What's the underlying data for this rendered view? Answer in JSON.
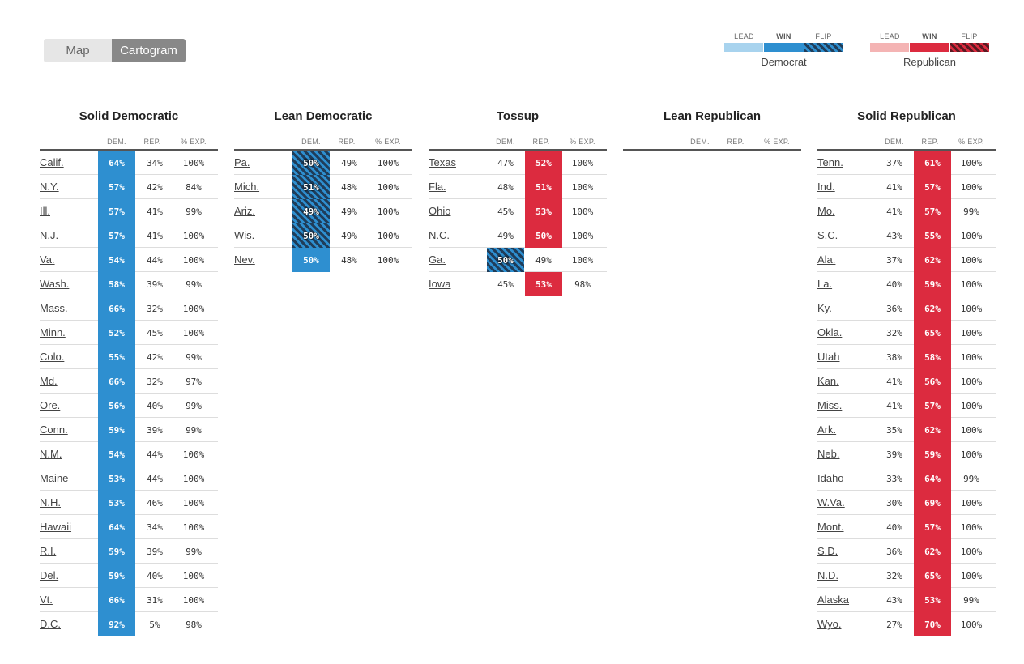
{
  "toggle": {
    "map_label": "Map",
    "cartogram_label": "Cartogram",
    "active": "cartogram"
  },
  "legend": {
    "dem": {
      "name": "Democrat",
      "labels": [
        "LEAD",
        "WIN",
        "FLIP"
      ],
      "colors": [
        "#a8d3ee",
        "#2e8fd0",
        "#1f3d5a"
      ]
    },
    "rep": {
      "name": "Republican",
      "labels": [
        "LEAD",
        "WIN",
        "FLIP"
      ],
      "colors": [
        "#f4b4b4",
        "#dc2b3f",
        "#5a1a22"
      ]
    }
  },
  "headers": {
    "dem": "DEM.",
    "rep": "REP.",
    "exp": "% EXP."
  },
  "columns": [
    {
      "title": "Solid Democratic",
      "rows": [
        {
          "state": "Calif.",
          "dem": "64%",
          "rep": "34%",
          "exp": "100%",
          "win": "dem"
        },
        {
          "state": "N.Y.",
          "dem": "57%",
          "rep": "42%",
          "exp": "84%",
          "win": "dem"
        },
        {
          "state": "Ill.",
          "dem": "57%",
          "rep": "41%",
          "exp": "99%",
          "win": "dem"
        },
        {
          "state": "N.J.",
          "dem": "57%",
          "rep": "41%",
          "exp": "100%",
          "win": "dem"
        },
        {
          "state": "Va.",
          "dem": "54%",
          "rep": "44%",
          "exp": "100%",
          "win": "dem"
        },
        {
          "state": "Wash.",
          "dem": "58%",
          "rep": "39%",
          "exp": "99%",
          "win": "dem"
        },
        {
          "state": "Mass.",
          "dem": "66%",
          "rep": "32%",
          "exp": "100%",
          "win": "dem"
        },
        {
          "state": "Minn.",
          "dem": "52%",
          "rep": "45%",
          "exp": "100%",
          "win": "dem"
        },
        {
          "state": "Colo.",
          "dem": "55%",
          "rep": "42%",
          "exp": "99%",
          "win": "dem"
        },
        {
          "state": "Md.",
          "dem": "66%",
          "rep": "32%",
          "exp": "97%",
          "win": "dem"
        },
        {
          "state": "Ore.",
          "dem": "56%",
          "rep": "40%",
          "exp": "99%",
          "win": "dem"
        },
        {
          "state": "Conn.",
          "dem": "59%",
          "rep": "39%",
          "exp": "99%",
          "win": "dem"
        },
        {
          "state": "N.M.",
          "dem": "54%",
          "rep": "44%",
          "exp": "100%",
          "win": "dem"
        },
        {
          "state": "Maine",
          "dem": "53%",
          "rep": "44%",
          "exp": "100%",
          "win": "dem"
        },
        {
          "state": "N.H.",
          "dem": "53%",
          "rep": "46%",
          "exp": "100%",
          "win": "dem"
        },
        {
          "state": "Hawaii",
          "dem": "64%",
          "rep": "34%",
          "exp": "100%",
          "win": "dem"
        },
        {
          "state": "R.I.",
          "dem": "59%",
          "rep": "39%",
          "exp": "99%",
          "win": "dem"
        },
        {
          "state": "Del.",
          "dem": "59%",
          "rep": "40%",
          "exp": "100%",
          "win": "dem"
        },
        {
          "state": "Vt.",
          "dem": "66%",
          "rep": "31%",
          "exp": "100%",
          "win": "dem"
        },
        {
          "state": "D.C.",
          "dem": "92%",
          "rep": "5%",
          "exp": "98%",
          "win": "dem"
        }
      ]
    },
    {
      "title": "Lean Democratic",
      "rows": [
        {
          "state": "Pa.",
          "dem": "50%",
          "rep": "49%",
          "exp": "100%",
          "win": "dem-flip"
        },
        {
          "state": "Mich.",
          "dem": "51%",
          "rep": "48%",
          "exp": "100%",
          "win": "dem-flip"
        },
        {
          "state": "Ariz.",
          "dem": "49%",
          "rep": "49%",
          "exp": "100%",
          "win": "dem-flip"
        },
        {
          "state": "Wis.",
          "dem": "50%",
          "rep": "49%",
          "exp": "100%",
          "win": "dem-flip"
        },
        {
          "state": "Nev.",
          "dem": "50%",
          "rep": "48%",
          "exp": "100%",
          "win": "dem"
        }
      ]
    },
    {
      "title": "Tossup",
      "rows": [
        {
          "state": "Texas",
          "dem": "47%",
          "rep": "52%",
          "exp": "100%",
          "win": "rep"
        },
        {
          "state": "Fla.",
          "dem": "48%",
          "rep": "51%",
          "exp": "100%",
          "win": "rep"
        },
        {
          "state": "Ohio",
          "dem": "45%",
          "rep": "53%",
          "exp": "100%",
          "win": "rep"
        },
        {
          "state": "N.C.",
          "dem": "49%",
          "rep": "50%",
          "exp": "100%",
          "win": "rep"
        },
        {
          "state": "Ga.",
          "dem": "50%",
          "rep": "49%",
          "exp": "100%",
          "win": "dem-flip"
        },
        {
          "state": "Iowa",
          "dem": "45%",
          "rep": "53%",
          "exp": "98%",
          "win": "rep"
        }
      ]
    },
    {
      "title": "Lean Republican",
      "rows": []
    },
    {
      "title": "Solid Republican",
      "rows": [
        {
          "state": "Tenn.",
          "dem": "37%",
          "rep": "61%",
          "exp": "100%",
          "win": "rep"
        },
        {
          "state": "Ind.",
          "dem": "41%",
          "rep": "57%",
          "exp": "100%",
          "win": "rep"
        },
        {
          "state": "Mo.",
          "dem": "41%",
          "rep": "57%",
          "exp": "99%",
          "win": "rep"
        },
        {
          "state": "S.C.",
          "dem": "43%",
          "rep": "55%",
          "exp": "100%",
          "win": "rep"
        },
        {
          "state": "Ala.",
          "dem": "37%",
          "rep": "62%",
          "exp": "100%",
          "win": "rep"
        },
        {
          "state": "La.",
          "dem": "40%",
          "rep": "59%",
          "exp": "100%",
          "win": "rep"
        },
        {
          "state": "Ky.",
          "dem": "36%",
          "rep": "62%",
          "exp": "100%",
          "win": "rep"
        },
        {
          "state": "Okla.",
          "dem": "32%",
          "rep": "65%",
          "exp": "100%",
          "win": "rep"
        },
        {
          "state": "Utah",
          "dem": "38%",
          "rep": "58%",
          "exp": "100%",
          "win": "rep"
        },
        {
          "state": "Kan.",
          "dem": "41%",
          "rep": "56%",
          "exp": "100%",
          "win": "rep"
        },
        {
          "state": "Miss.",
          "dem": "41%",
          "rep": "57%",
          "exp": "100%",
          "win": "rep"
        },
        {
          "state": "Ark.",
          "dem": "35%",
          "rep": "62%",
          "exp": "100%",
          "win": "rep"
        },
        {
          "state": "Neb.",
          "dem": "39%",
          "rep": "59%",
          "exp": "100%",
          "win": "rep"
        },
        {
          "state": "Idaho",
          "dem": "33%",
          "rep": "64%",
          "exp": "99%",
          "win": "rep"
        },
        {
          "state": "W.Va.",
          "dem": "30%",
          "rep": "69%",
          "exp": "100%",
          "win": "rep"
        },
        {
          "state": "Mont.",
          "dem": "40%",
          "rep": "57%",
          "exp": "100%",
          "win": "rep"
        },
        {
          "state": "S.D.",
          "dem": "36%",
          "rep": "62%",
          "exp": "100%",
          "win": "rep"
        },
        {
          "state": "N.D.",
          "dem": "32%",
          "rep": "65%",
          "exp": "100%",
          "win": "rep"
        },
        {
          "state": "Alaska",
          "dem": "43%",
          "rep": "53%",
          "exp": "99%",
          "win": "rep"
        },
        {
          "state": "Wyo.",
          "dem": "27%",
          "rep": "70%",
          "exp": "100%",
          "win": "rep"
        }
      ]
    }
  ]
}
